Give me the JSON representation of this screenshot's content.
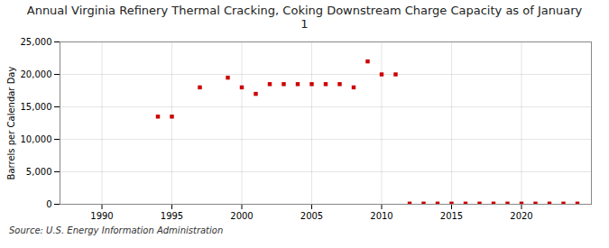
{
  "chart_data": {
    "type": "scatter",
    "title": "Annual Virginia Refinery Thermal Cracking, Coking Downstream Charge Capacity as of January\n1",
    "ylabel": "Barrels per Calendar Day",
    "annotations": [
      "Source: U.S. Energy Information Administration"
    ],
    "x": [
      1994,
      1995,
      1997,
      1999,
      2000,
      2001,
      2002,
      2003,
      2004,
      2005,
      2006,
      2007,
      2008,
      2009,
      2010,
      2011,
      2012,
      2013,
      2014,
      2015,
      2016,
      2017,
      2018,
      2019,
      2020,
      2021,
      2022,
      2023,
      2024
    ],
    "values": [
      13500,
      13500,
      18000,
      19500,
      18000,
      17000,
      18500,
      18500,
      18500,
      18500,
      18500,
      18500,
      18000,
      22000,
      20000,
      20000,
      100,
      100,
      100,
      100,
      100,
      100,
      100,
      100,
      100,
      100,
      100,
      100,
      100
    ],
    "color": "#cc0000",
    "marker": "square",
    "xlim": [
      1987,
      2025
    ],
    "ylim": [
      0,
      25000
    ],
    "xticks": [
      1990,
      1995,
      2000,
      2005,
      2010,
      2015,
      2020
    ],
    "yticks": [
      0,
      {
        "value": 5000,
        "label": "5,000"
      },
      {
        "value": 10000,
        "label": "10,000"
      },
      {
        "value": 15000,
        "label": "15,000"
      },
      {
        "value": 20000,
        "label": "20,000"
      },
      {
        "value": 25000,
        "label": "25,000"
      }
    ],
    "grid": true
  }
}
